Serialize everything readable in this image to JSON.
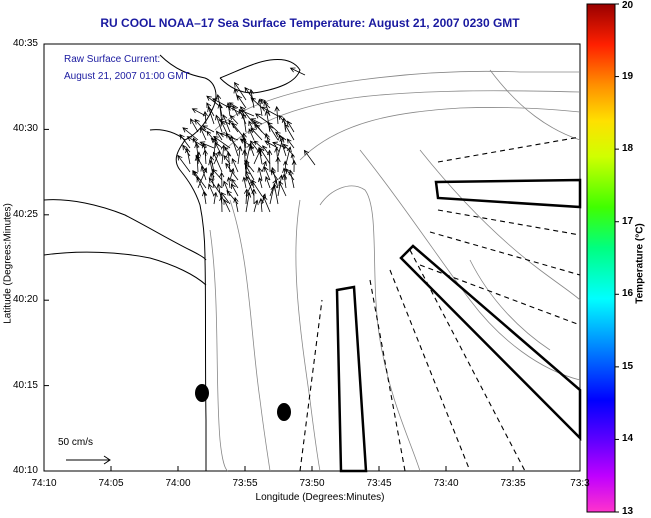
{
  "title": "RU COOL  NOAA–17  Sea Surface Temperature:  August 21, 2007 0230 GMT",
  "current_note": {
    "line1": "Raw Surface Current:",
    "line2": "August 21, 2007 01:00 GMT"
  },
  "axes": {
    "xlabel": "Longitude (Degrees:Minutes)",
    "ylabel": "Latitude (Degrees:Minutes)",
    "x_ticks": [
      "74:10",
      "74:05",
      "74:00",
      "73:55",
      "73:50",
      "73:45",
      "73:40",
      "73:35",
      "73:3"
    ],
    "y_ticks": [
      "40:35",
      "40:30",
      "40:25",
      "40:20",
      "40:15",
      "40:10"
    ]
  },
  "scale_label": "50 cm/s",
  "colorbar": {
    "label": "Temperature (°C)",
    "ticks": [
      "20",
      "19",
      "18",
      "17",
      "16",
      "15",
      "14",
      "13"
    ],
    "min": 13,
    "max": 20
  },
  "colors": {
    "title": "#1a1aa0",
    "coast": "#000000",
    "bathymetry": "#888888"
  }
}
